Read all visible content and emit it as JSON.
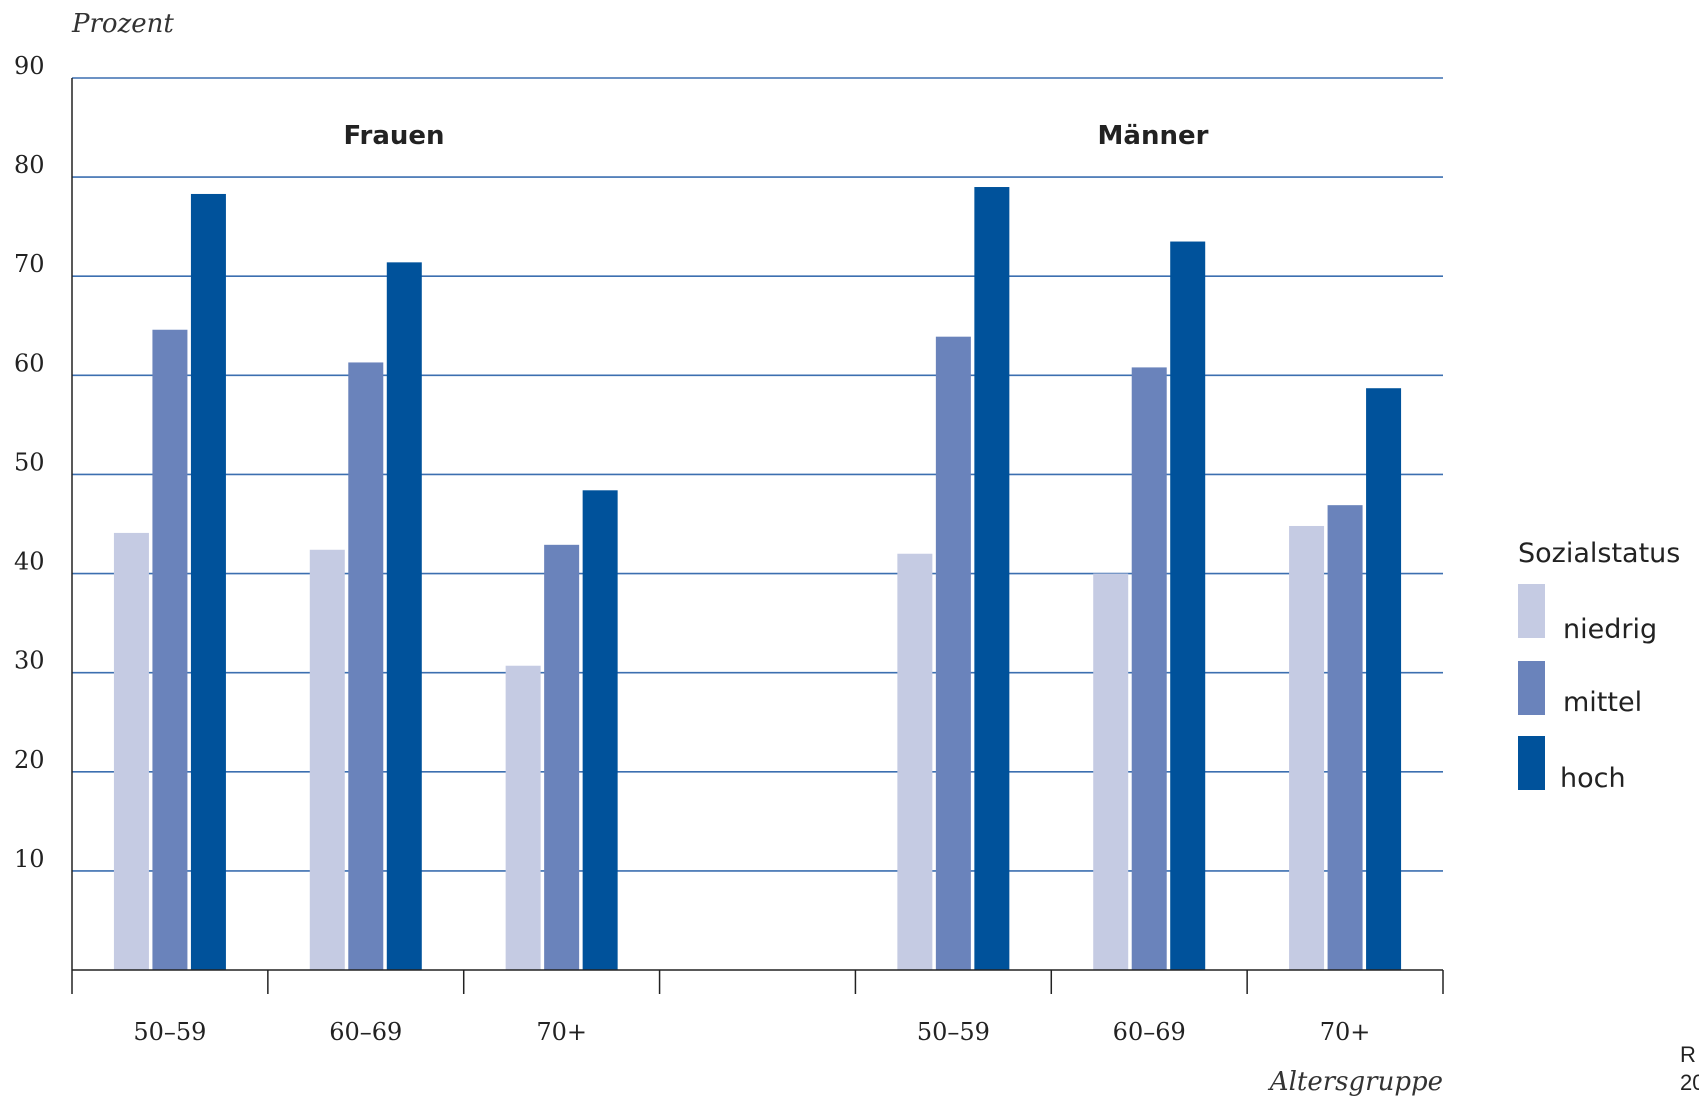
{
  "chart_data": {
    "type": "bar",
    "ylabel": "Prozent",
    "xlabel": "Altersgruppe",
    "ylim": [
      0,
      90
    ],
    "yticks": [
      10,
      20,
      30,
      40,
      50,
      60,
      70,
      80,
      90
    ],
    "grid": true,
    "groups": [
      {
        "label": "Frauen",
        "categories": [
          "50–59",
          "60–69",
          "70+"
        ],
        "series": [
          {
            "name": "niedrig",
            "values": [
              44.1,
              42.4,
              30.7
            ]
          },
          {
            "name": "mittel",
            "values": [
              64.6,
              61.3,
              42.9
            ]
          },
          {
            "name": "hoch",
            "values": [
              78.3,
              71.4,
              48.4
            ]
          }
        ]
      },
      {
        "label": "Männer",
        "categories": [
          "50–59",
          "60–69",
          "70+"
        ],
        "series": [
          {
            "name": "niedrig",
            "values": [
              42.0,
              40.0,
              44.8
            ]
          },
          {
            "name": "mittel",
            "values": [
              63.9,
              60.8,
              46.9
            ]
          },
          {
            "name": "hoch",
            "values": [
              79.0,
              73.5,
              58.7
            ]
          }
        ]
      }
    ],
    "legend": {
      "title": "Sozialstatus",
      "position": "right",
      "items": [
        "niedrig",
        "mittel",
        "hoch"
      ]
    },
    "colors": {
      "niedrig": "#c5cbe3",
      "mittel": "#6a83bb",
      "hoch": "#00529b",
      "grid": "#3c6fb0",
      "axis": "#222222"
    },
    "source_fragment": [
      "R",
      "20"
    ]
  }
}
